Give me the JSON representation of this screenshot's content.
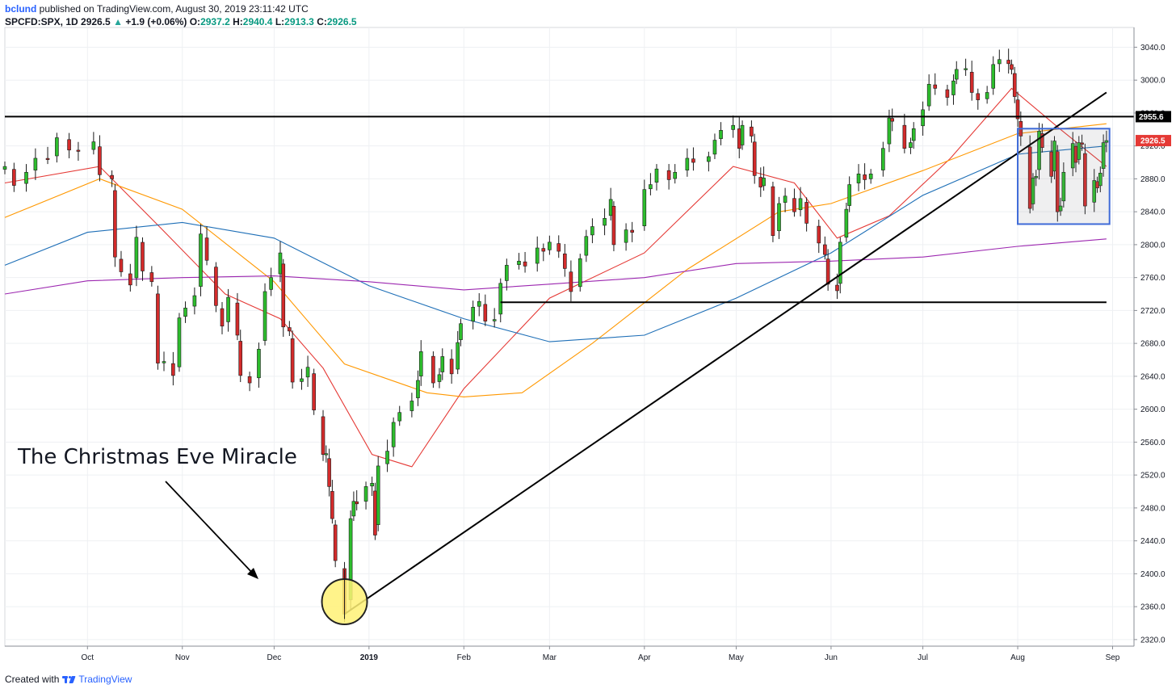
{
  "header": {
    "user": "bclund",
    "published": "published on TradingView.com, August 30, 2019 23:11:42 UTC",
    "symbol": "SPCFD:SPX, 1D",
    "last": "2926.5",
    "arrow": "▲",
    "change": "+1.9 (+0.06%)",
    "o_label": "O:",
    "o": "2937.2",
    "h_label": "H:",
    "h": "2940.4",
    "l_label": "L:",
    "l": "2913.3",
    "c_label": "C:",
    "c": "2926.5"
  },
  "footer": {
    "created": "Created with",
    "brand": "TradingView"
  },
  "colors": {
    "up": "#2dbd2d",
    "down": "#d32b2b",
    "ma_red": "#e53935",
    "ma_orange": "#ff9800",
    "ma_blue": "#1e6fb7",
    "ma_purple": "#9c27b0",
    "highlight": "#fff176",
    "box": "#3f6bd8"
  },
  "chart_data": {
    "type": "candlestick",
    "y_ticks": [
      "3040.0",
      "3000.0",
      "2960.0",
      "2920.0",
      "2880.0",
      "2840.0",
      "2800.0",
      "2760.0",
      "2720.0",
      "2680.0",
      "2640.0",
      "2600.0",
      "2560.0",
      "2520.0",
      "2480.0",
      "2440.0",
      "2400.0",
      "2360.0",
      "2320.0"
    ],
    "ylim": [
      2312,
      3064
    ],
    "x_labels": [
      {
        "label": "Oct",
        "date": "2018-10-01"
      },
      {
        "label": "Nov",
        "date": "2018-11-01"
      },
      {
        "label": "Dec",
        "date": "2018-12-01"
      },
      {
        "label": "2019",
        "date": "2019-01-01",
        "bold": true
      },
      {
        "label": "Feb",
        "date": "2019-02-01"
      },
      {
        "label": "Mar",
        "date": "2019-03-01"
      },
      {
        "label": "Apr",
        "date": "2019-04-01"
      },
      {
        "label": "May",
        "date": "2019-05-01"
      },
      {
        "label": "Jun",
        "date": "2019-06-01"
      },
      {
        "label": "Jul",
        "date": "2019-07-01"
      },
      {
        "label": "Aug",
        "date": "2019-08-01"
      },
      {
        "label": "Sep",
        "date": "2019-09-01"
      }
    ],
    "xlim": [
      "2018-09-04",
      "2019-09-08"
    ],
    "resistance_label": "2955.6",
    "resistance_value": 2955.6,
    "last_price_label": "2926.5",
    "last_price_value": 2926.5,
    "support_line": {
      "from": "2019-02-13",
      "to": "2019-08-30",
      "value": 2730
    },
    "trend_line": {
      "from": [
        "2018-12-24",
        2351
      ],
      "to": [
        "2019-08-30",
        2985
      ]
    },
    "range_box": {
      "from": "2019-08-01",
      "to": "2019-08-31",
      "high": 2941,
      "low": 2825
    },
    "annotation": "The Christmas Eve Miracle",
    "highlight_point": [
      "2018-12-24",
      2366
    ],
    "closes": [
      [
        "2018-09-04",
        2895
      ],
      [
        "2018-09-07",
        2872
      ],
      [
        "2018-09-11",
        2888
      ],
      [
        "2018-09-14",
        2905
      ],
      [
        "2018-09-18",
        2904
      ],
      [
        "2018-09-21",
        2930
      ],
      [
        "2018-09-25",
        2915
      ],
      [
        "2018-09-28",
        2914
      ],
      [
        "2018-10-03",
        2925
      ],
      [
        "2018-10-05",
        2885
      ],
      [
        "2018-10-09",
        2880
      ],
      [
        "2018-10-10",
        2785
      ],
      [
        "2018-10-12",
        2767
      ],
      [
        "2018-10-15",
        2751
      ],
      [
        "2018-10-17",
        2809
      ],
      [
        "2018-10-19",
        2768
      ],
      [
        "2018-10-22",
        2755
      ],
      [
        "2018-10-24",
        2656
      ],
      [
        "2018-10-26",
        2658
      ],
      [
        "2018-10-29",
        2641
      ],
      [
        "2018-10-31",
        2711
      ],
      [
        "2018-11-02",
        2723
      ],
      [
        "2018-11-05",
        2738
      ],
      [
        "2018-11-07",
        2813
      ],
      [
        "2018-11-09",
        2781
      ],
      [
        "2018-11-12",
        2726
      ],
      [
        "2018-11-14",
        2701
      ],
      [
        "2018-11-16",
        2736
      ],
      [
        "2018-11-19",
        2690
      ],
      [
        "2018-11-20",
        2641
      ],
      [
        "2018-11-23",
        2632
      ],
      [
        "2018-11-26",
        2673
      ],
      [
        "2018-11-28",
        2743
      ],
      [
        "2018-11-30",
        2760
      ],
      [
        "2018-12-03",
        2790
      ],
      [
        "2018-12-04",
        2700
      ],
      [
        "2018-12-06",
        2695
      ],
      [
        "2018-12-07",
        2633
      ],
      [
        "2018-12-10",
        2637
      ],
      [
        "2018-12-12",
        2651
      ],
      [
        "2018-12-14",
        2599
      ],
      [
        "2018-12-17",
        2545
      ],
      [
        "2018-12-18",
        2546
      ],
      [
        "2018-12-19",
        2506
      ],
      [
        "2018-12-20",
        2467
      ],
      [
        "2018-12-21",
        2416
      ],
      [
        "2018-12-24",
        2351
      ],
      [
        "2018-12-26",
        2467
      ],
      [
        "2018-12-27",
        2488
      ],
      [
        "2018-12-28",
        2485
      ],
      [
        "2018-12-31",
        2506
      ],
      [
        "2019-01-02",
        2510
      ],
      [
        "2019-01-03",
        2447
      ],
      [
        "2019-01-04",
        2531
      ],
      [
        "2019-01-07",
        2549
      ],
      [
        "2019-01-09",
        2584
      ],
      [
        "2019-01-11",
        2596
      ],
      [
        "2019-01-15",
        2610
      ],
      [
        "2019-01-17",
        2635
      ],
      [
        "2019-01-18",
        2670
      ],
      [
        "2019-01-22",
        2632
      ],
      [
        "2019-01-24",
        2642
      ],
      [
        "2019-01-25",
        2664
      ],
      [
        "2019-01-28",
        2643
      ],
      [
        "2019-01-30",
        2681
      ],
      [
        "2019-01-31",
        2704
      ],
      [
        "2019-02-04",
        2724
      ],
      [
        "2019-02-06",
        2731
      ],
      [
        "2019-02-08",
        2707
      ],
      [
        "2019-02-11",
        2709
      ],
      [
        "2019-02-13",
        2753
      ],
      [
        "2019-02-15",
        2775
      ],
      [
        "2019-02-19",
        2780
      ],
      [
        "2019-02-21",
        2774
      ],
      [
        "2019-02-25",
        2796
      ],
      [
        "2019-02-27",
        2792
      ],
      [
        "2019-03-01",
        2803
      ],
      [
        "2019-03-04",
        2792
      ],
      [
        "2019-03-06",
        2771
      ],
      [
        "2019-03-08",
        2743
      ],
      [
        "2019-03-11",
        2783
      ],
      [
        "2019-03-13",
        2810
      ],
      [
        "2019-03-15",
        2822
      ],
      [
        "2019-03-19",
        2832
      ],
      [
        "2019-03-21",
        2855
      ],
      [
        "2019-03-22",
        2800
      ],
      [
        "2019-03-26",
        2818
      ],
      [
        "2019-03-28",
        2815
      ],
      [
        "2019-04-01",
        2867
      ],
      [
        "2019-04-03",
        2873
      ],
      [
        "2019-04-05",
        2892
      ],
      [
        "2019-04-09",
        2879
      ],
      [
        "2019-04-11",
        2888
      ],
      [
        "2019-04-15",
        2905
      ],
      [
        "2019-04-17",
        2900
      ],
      [
        "2019-04-22",
        2907
      ],
      [
        "2019-04-24",
        2927
      ],
      [
        "2019-04-26",
        2939
      ],
      [
        "2019-04-30",
        2945
      ],
      [
        "2019-05-02",
        2917
      ],
      [
        "2019-05-03",
        2945
      ],
      [
        "2019-05-06",
        2932
      ],
      [
        "2019-05-07",
        2884
      ],
      [
        "2019-05-09",
        2870
      ],
      [
        "2019-05-10",
        2881
      ],
      [
        "2019-05-13",
        2811
      ],
      [
        "2019-05-15",
        2850
      ],
      [
        "2019-05-17",
        2859
      ],
      [
        "2019-05-20",
        2840
      ],
      [
        "2019-05-22",
        2856
      ],
      [
        "2019-05-24",
        2826
      ],
      [
        "2019-05-28",
        2802
      ],
      [
        "2019-05-30",
        2788
      ],
      [
        "2019-05-31",
        2752
      ],
      [
        "2019-06-03",
        2744
      ],
      [
        "2019-06-04",
        2803
      ],
      [
        "2019-06-06",
        2843
      ],
      [
        "2019-06-07",
        2873
      ],
      [
        "2019-06-10",
        2886
      ],
      [
        "2019-06-12",
        2879
      ],
      [
        "2019-06-14",
        2886
      ],
      [
        "2019-06-18",
        2917
      ],
      [
        "2019-06-20",
        2954
      ],
      [
        "2019-06-21",
        2950
      ],
      [
        "2019-06-25",
        2917
      ],
      [
        "2019-06-27",
        2924
      ],
      [
        "2019-06-28",
        2941
      ],
      [
        "2019-07-01",
        2964
      ],
      [
        "2019-07-03",
        2995
      ],
      [
        "2019-07-05",
        2990
      ],
      [
        "2019-07-09",
        2979
      ],
      [
        "2019-07-11",
        2999
      ],
      [
        "2019-07-12",
        3013
      ],
      [
        "2019-07-15",
        3014
      ],
      [
        "2019-07-17",
        2985
      ],
      [
        "2019-07-19",
        2976
      ],
      [
        "2019-07-22",
        2985
      ],
      [
        "2019-07-24",
        3019
      ],
      [
        "2019-07-26",
        3025
      ],
      [
        "2019-07-29",
        3020
      ],
      [
        "2019-07-30",
        3013
      ],
      [
        "2019-07-31",
        2980
      ],
      [
        "2019-08-01",
        2953
      ],
      [
        "2019-08-02",
        2932
      ],
      [
        "2019-08-05",
        2844
      ],
      [
        "2019-08-06",
        2881
      ],
      [
        "2019-08-07",
        2883
      ],
      [
        "2019-08-08",
        2938
      ],
      [
        "2019-08-09",
        2918
      ],
      [
        "2019-08-12",
        2883
      ],
      [
        "2019-08-13",
        2926
      ],
      [
        "2019-08-14",
        2840
      ],
      [
        "2019-08-15",
        2847
      ],
      [
        "2019-08-16",
        2888
      ],
      [
        "2019-08-19",
        2923
      ],
      [
        "2019-08-20",
        2900
      ],
      [
        "2019-08-21",
        2924
      ],
      [
        "2019-08-22",
        2922
      ],
      [
        "2019-08-23",
        2847
      ],
      [
        "2019-08-26",
        2878
      ],
      [
        "2019-08-27",
        2869
      ],
      [
        "2019-08-28",
        2887
      ],
      [
        "2019-08-29",
        2924
      ],
      [
        "2019-08-30",
        2926.5
      ]
    ],
    "moving_averages": [
      {
        "color_key": "ma_red",
        "points": [
          [
            "2018-09-04",
            2875
          ],
          [
            "2018-10-05",
            2895
          ],
          [
            "2018-10-25",
            2820
          ],
          [
            "2018-11-15",
            2740
          ],
          [
            "2018-12-03",
            2710
          ],
          [
            "2018-12-17",
            2650
          ],
          [
            "2019-01-02",
            2545
          ],
          [
            "2019-01-15",
            2530
          ],
          [
            "2019-02-01",
            2625
          ],
          [
            "2019-03-01",
            2735
          ],
          [
            "2019-04-01",
            2790
          ],
          [
            "2019-04-30",
            2895
          ],
          [
            "2019-05-20",
            2875
          ],
          [
            "2019-06-03",
            2808
          ],
          [
            "2019-06-20",
            2835
          ],
          [
            "2019-07-10",
            2905
          ],
          [
            "2019-07-30",
            2990
          ],
          [
            "2019-08-15",
            2940
          ],
          [
            "2019-08-30",
            2895
          ]
        ]
      },
      {
        "color_key": "ma_orange",
        "points": [
          [
            "2018-09-04",
            2833
          ],
          [
            "2018-10-05",
            2880
          ],
          [
            "2018-11-01",
            2843
          ],
          [
            "2018-12-01",
            2755
          ],
          [
            "2018-12-24",
            2655
          ],
          [
            "2019-01-20",
            2620
          ],
          [
            "2019-02-01",
            2615
          ],
          [
            "2019-02-20",
            2620
          ],
          [
            "2019-03-15",
            2680
          ],
          [
            "2019-04-15",
            2770
          ],
          [
            "2019-05-15",
            2840
          ],
          [
            "2019-06-01",
            2850
          ],
          [
            "2019-07-01",
            2890
          ],
          [
            "2019-08-01",
            2935
          ],
          [
            "2019-08-30",
            2947
          ]
        ]
      },
      {
        "color_key": "ma_blue",
        "points": [
          [
            "2018-09-04",
            2775
          ],
          [
            "2018-10-01",
            2815
          ],
          [
            "2018-11-01",
            2827
          ],
          [
            "2018-12-01",
            2808
          ],
          [
            "2019-01-01",
            2750
          ],
          [
            "2019-02-01",
            2710
          ],
          [
            "2019-03-01",
            2682
          ],
          [
            "2019-04-01",
            2690
          ],
          [
            "2019-05-01",
            2735
          ],
          [
            "2019-06-01",
            2790
          ],
          [
            "2019-07-01",
            2860
          ],
          [
            "2019-08-01",
            2910
          ],
          [
            "2019-08-30",
            2920
          ]
        ]
      },
      {
        "color_key": "ma_purple",
        "points": [
          [
            "2018-09-04",
            2740
          ],
          [
            "2018-10-01",
            2756
          ],
          [
            "2018-11-01",
            2760
          ],
          [
            "2018-12-01",
            2762
          ],
          [
            "2019-01-01",
            2755
          ],
          [
            "2019-02-01",
            2745
          ],
          [
            "2019-03-01",
            2752
          ],
          [
            "2019-04-01",
            2760
          ],
          [
            "2019-05-01",
            2777
          ],
          [
            "2019-06-01",
            2780
          ],
          [
            "2019-07-01",
            2785
          ],
          [
            "2019-08-01",
            2798
          ],
          [
            "2019-08-30",
            2807
          ]
        ]
      }
    ]
  }
}
